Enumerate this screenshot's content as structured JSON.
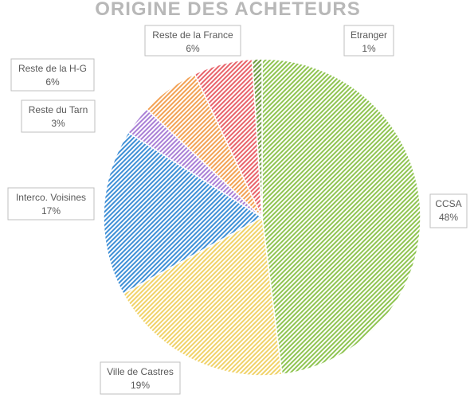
{
  "chart_data": {
    "type": "pie",
    "title": "ORIGINE DES ACHETEURS",
    "slices": [
      {
        "name": "CCSA",
        "value": 48,
        "label": "48%",
        "color": "#8fc451"
      },
      {
        "name": "Ville de Castres",
        "value": 19,
        "label": "19%",
        "color": "#f0d268"
      },
      {
        "name": "Interco. Voisines",
        "value": 17,
        "label": "17%",
        "color": "#3f8fd6"
      },
      {
        "name": "Reste du Tarn",
        "value": 3,
        "label": "3%",
        "color": "#a97fd6"
      },
      {
        "name": "Reste de la H-G",
        "value": 6,
        "label": "6%",
        "color": "#f2a154"
      },
      {
        "name": "Reste de la France",
        "value": 6,
        "label": "6%",
        "color": "#e8636a"
      },
      {
        "name": "Etranger",
        "value": 1,
        "label": "1%",
        "color": "#6f9c3f"
      }
    ],
    "start": "12 o'clock",
    "direction": "clockwise",
    "legend": "none",
    "fill_pattern": "diagonal hatch"
  }
}
